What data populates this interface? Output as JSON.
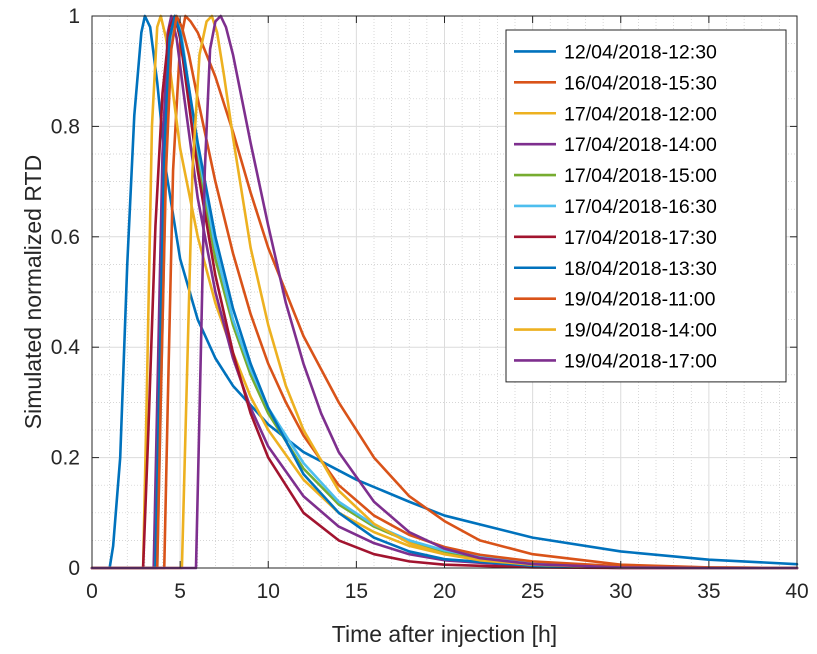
{
  "chart_data": {
    "type": "line",
    "title": "",
    "xlabel": "Time after injection [h]",
    "ylabel": "Simulated normalized RTD",
    "xlim": [
      0,
      40
    ],
    "ylim": [
      0,
      1
    ],
    "xticks": [
      0,
      5,
      10,
      15,
      20,
      25,
      30,
      35,
      40
    ],
    "xtick_labels": [
      "0",
      "5",
      "10",
      "15",
      "20",
      "25",
      "30",
      "35",
      "40"
    ],
    "yticks": [
      0,
      0.2,
      0.4,
      0.6,
      0.8,
      1
    ],
    "ytick_labels": [
      "0",
      "0.2",
      "0.4",
      "0.6",
      "0.8",
      "1"
    ],
    "grid": true,
    "minor_grid": true,
    "legend_position": "top-right",
    "series": [
      {
        "name": "12/04/2018-12:30",
        "color": "#0072BD",
        "x": [
          0,
          1.0,
          1.2,
          1.6,
          2.0,
          2.4,
          2.8,
          3.0,
          3.3,
          3.7,
          4.2,
          5,
          6,
          7,
          8,
          10,
          12,
          15,
          18,
          20,
          25,
          30,
          35,
          40
        ],
        "y": [
          0,
          0,
          0.04,
          0.2,
          0.55,
          0.82,
          0.97,
          1.0,
          0.98,
          0.88,
          0.72,
          0.56,
          0.45,
          0.38,
          0.33,
          0.26,
          0.21,
          0.16,
          0.12,
          0.095,
          0.055,
          0.03,
          0.015,
          0.007
        ]
      },
      {
        "name": "16/04/2018-15:30",
        "color": "#D95319",
        "x": [
          0,
          4.1,
          4.3,
          4.6,
          5.0,
          5.3,
          5.6,
          6.0,
          6.5,
          7,
          8,
          9,
          10,
          12,
          14,
          16,
          18,
          20,
          22,
          25,
          30,
          35,
          40
        ],
        "y": [
          0,
          0,
          0.3,
          0.72,
          0.95,
          1.0,
          0.99,
          0.97,
          0.93,
          0.89,
          0.79,
          0.68,
          0.58,
          0.42,
          0.3,
          0.2,
          0.13,
          0.085,
          0.05,
          0.025,
          0.006,
          0.001,
          0
        ]
      },
      {
        "name": "17/04/2018-12:00",
        "color": "#EDB120",
        "x": [
          0,
          2.9,
          3.1,
          3.4,
          3.7,
          3.9,
          4.2,
          4.6,
          5.0,
          6,
          7,
          8,
          9,
          10,
          12,
          14,
          16,
          18,
          20,
          25,
          30,
          35,
          40
        ],
        "y": [
          0,
          0,
          0.3,
          0.8,
          0.98,
          1.0,
          0.96,
          0.86,
          0.76,
          0.6,
          0.48,
          0.39,
          0.31,
          0.25,
          0.16,
          0.1,
          0.065,
          0.04,
          0.025,
          0.007,
          0.002,
          0,
          0
        ]
      },
      {
        "name": "17/04/2018-14:00",
        "color": "#7E2F8E",
        "x": [
          0,
          3.5,
          3.7,
          4.0,
          4.3,
          4.5,
          4.8,
          5.2,
          6,
          7,
          8,
          9,
          10,
          12,
          14,
          16,
          18,
          20,
          25,
          30,
          35,
          40
        ],
        "y": [
          0,
          0,
          0.3,
          0.75,
          0.97,
          1.0,
          0.96,
          0.86,
          0.67,
          0.5,
          0.38,
          0.29,
          0.22,
          0.13,
          0.075,
          0.045,
          0.025,
          0.014,
          0.003,
          0,
          0,
          0
        ]
      },
      {
        "name": "17/04/2018-15:00",
        "color": "#77AC30",
        "x": [
          0,
          3.6,
          3.8,
          4.1,
          4.4,
          4.7,
          5.0,
          5.4,
          6,
          7,
          8,
          9,
          10,
          12,
          14,
          16,
          18,
          20,
          22,
          25,
          30,
          35,
          40
        ],
        "y": [
          0,
          0,
          0.3,
          0.74,
          0.95,
          1.0,
          0.96,
          0.87,
          0.74,
          0.56,
          0.44,
          0.35,
          0.28,
          0.18,
          0.115,
          0.075,
          0.048,
          0.03,
          0.018,
          0.008,
          0.002,
          0,
          0
        ]
      },
      {
        "name": "17/04/2018-16:30",
        "color": "#4DBEEE",
        "x": [
          0,
          3.7,
          3.9,
          4.2,
          4.5,
          4.8,
          5.1,
          5.5,
          6,
          7,
          8,
          9,
          10,
          12,
          14,
          16,
          18,
          20,
          22,
          25,
          30,
          35,
          40
        ],
        "y": [
          0,
          0,
          0.3,
          0.74,
          0.95,
          1.0,
          0.96,
          0.87,
          0.76,
          0.58,
          0.45,
          0.36,
          0.29,
          0.19,
          0.12,
          0.078,
          0.05,
          0.032,
          0.02,
          0.009,
          0.002,
          0,
          0
        ]
      },
      {
        "name": "17/04/2018-17:30",
        "color": "#A2142F",
        "x": [
          0,
          2.9,
          3.2,
          3.6,
          4.0,
          4.4,
          4.7,
          5.0,
          5.5,
          6,
          7,
          8,
          9,
          10,
          12,
          14,
          16,
          18,
          20,
          25,
          30,
          35,
          40
        ],
        "y": [
          0,
          0,
          0.25,
          0.62,
          0.86,
          0.98,
          1.0,
          0.96,
          0.84,
          0.72,
          0.53,
          0.39,
          0.28,
          0.2,
          0.1,
          0.05,
          0.025,
          0.012,
          0.006,
          0.001,
          0,
          0,
          0
        ]
      },
      {
        "name": "18/04/2018-13:30",
        "color": "#0072BD",
        "x": [
          0,
          3.6,
          3.8,
          4.1,
          4.4,
          4.7,
          5.0,
          5.4,
          6,
          7,
          8,
          9,
          10,
          12,
          14,
          16,
          18,
          20,
          25,
          30,
          35,
          40
        ],
        "y": [
          0,
          0,
          0.3,
          0.75,
          0.96,
          1.0,
          0.97,
          0.89,
          0.77,
          0.6,
          0.47,
          0.37,
          0.29,
          0.17,
          0.1,
          0.055,
          0.03,
          0.016,
          0.004,
          0.001,
          0,
          0
        ]
      },
      {
        "name": "19/04/2018-11:00",
        "color": "#D95319",
        "x": [
          0,
          3.7,
          3.9,
          4.2,
          4.5,
          4.8,
          5.1,
          5.5,
          6,
          7,
          8,
          9,
          10,
          11,
          12,
          14,
          16,
          18,
          20,
          22,
          25,
          30,
          35,
          40
        ],
        "y": [
          0,
          0,
          0.3,
          0.72,
          0.94,
          1.0,
          0.98,
          0.93,
          0.85,
          0.7,
          0.57,
          0.46,
          0.37,
          0.3,
          0.24,
          0.15,
          0.095,
          0.06,
          0.038,
          0.024,
          0.012,
          0.003,
          0.001,
          0
        ]
      },
      {
        "name": "19/04/2018-14:00",
        "color": "#EDB120",
        "x": [
          0,
          5.1,
          5.35,
          5.7,
          6.1,
          6.5,
          6.8,
          7.1,
          7.5,
          8,
          9,
          10,
          11,
          12,
          14,
          16,
          18,
          20,
          22,
          25,
          30,
          35,
          40
        ],
        "y": [
          0,
          0,
          0.3,
          0.72,
          0.93,
          0.99,
          1.0,
          0.97,
          0.89,
          0.78,
          0.58,
          0.44,
          0.33,
          0.25,
          0.14,
          0.08,
          0.045,
          0.025,
          0.014,
          0.006,
          0.001,
          0,
          0
        ]
      },
      {
        "name": "19/04/2018-17:00",
        "color": "#7E2F8E",
        "x": [
          0,
          5.9,
          6.1,
          6.4,
          6.7,
          7.0,
          7.3,
          7.6,
          8.0,
          8.5,
          9,
          10,
          11,
          12,
          13,
          14,
          16,
          18,
          20,
          22,
          25,
          30,
          35,
          40
        ],
        "y": [
          0,
          0,
          0.28,
          0.72,
          0.94,
          0.99,
          1.0,
          0.98,
          0.93,
          0.85,
          0.77,
          0.62,
          0.48,
          0.37,
          0.28,
          0.21,
          0.12,
          0.065,
          0.035,
          0.018,
          0.007,
          0.001,
          0,
          0
        ]
      }
    ]
  }
}
